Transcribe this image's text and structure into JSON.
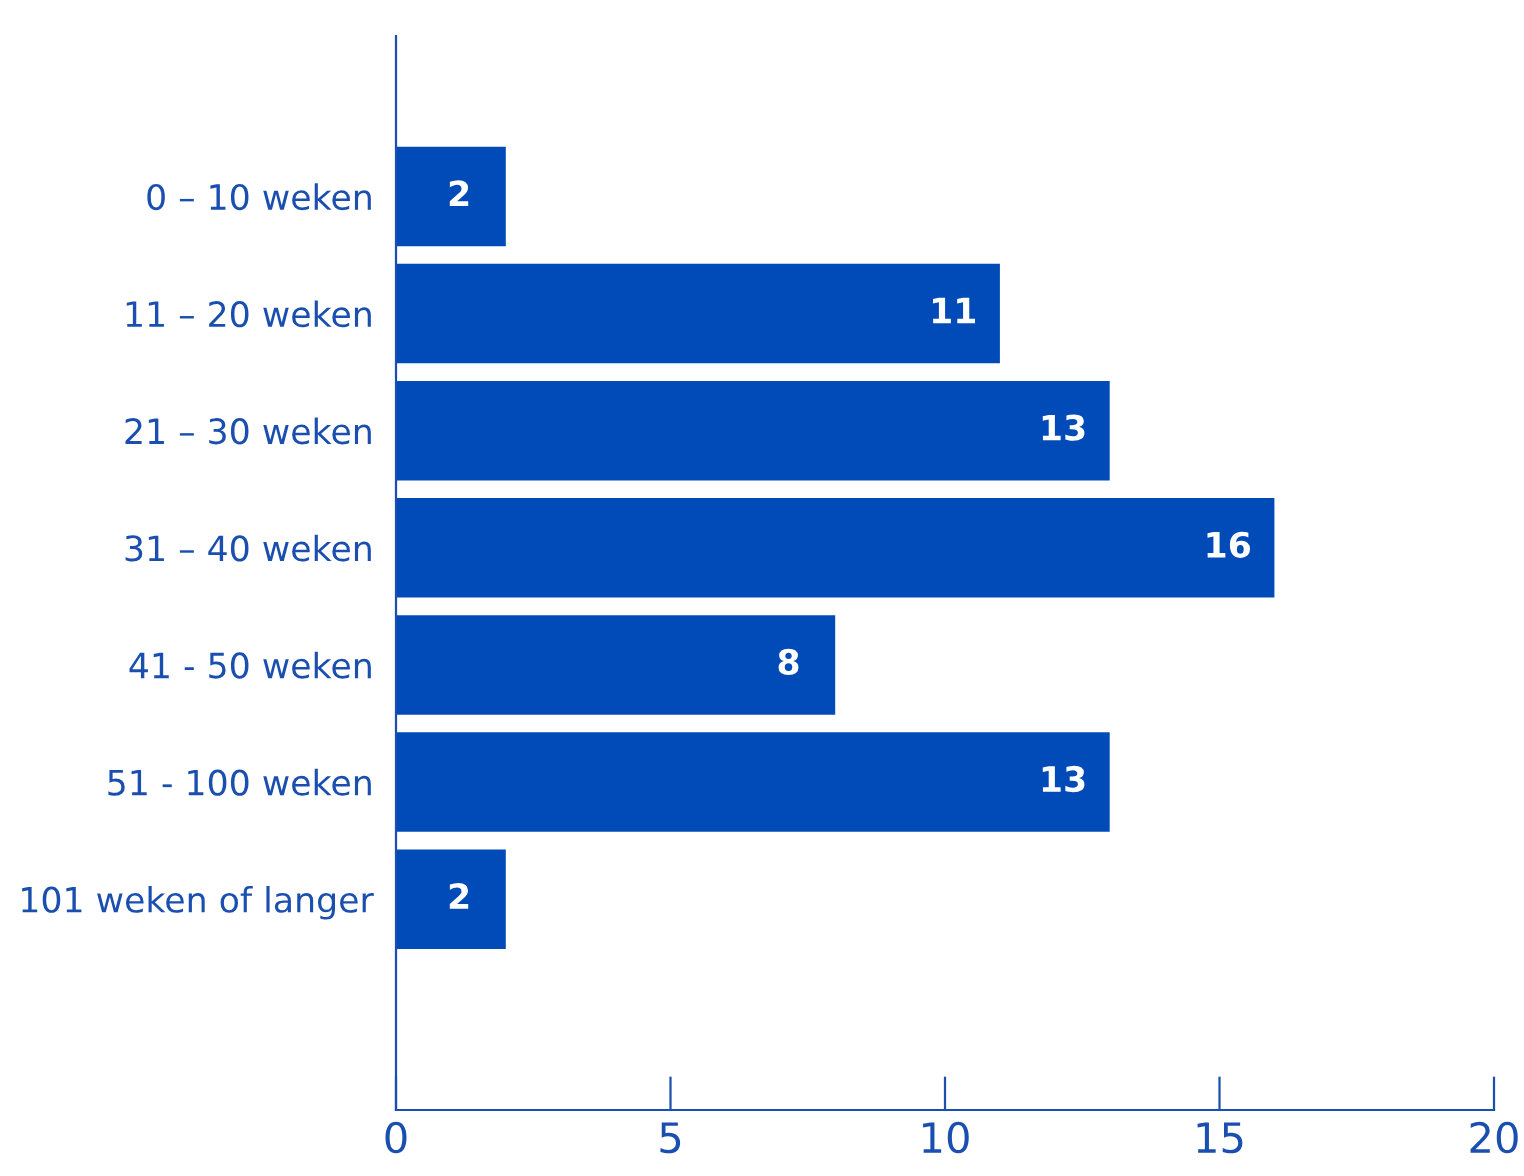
{
  "chart_data": {
    "type": "bar",
    "orientation": "horizontal",
    "categories": [
      "0 – 10 weken",
      "11 – 20 weken",
      "21 – 30 weken",
      "31 – 40 weken",
      "41 - 50 weken",
      "51 - 100 weken",
      "101 weken of langer"
    ],
    "values": [
      2,
      11,
      13,
      16,
      8,
      13,
      2
    ],
    "color": "#004bb8",
    "xlim": [
      0,
      20
    ],
    "xticks": [
      0,
      5,
      10,
      15,
      20
    ],
    "grid": false,
    "legend": false,
    "data_labels": true
  }
}
